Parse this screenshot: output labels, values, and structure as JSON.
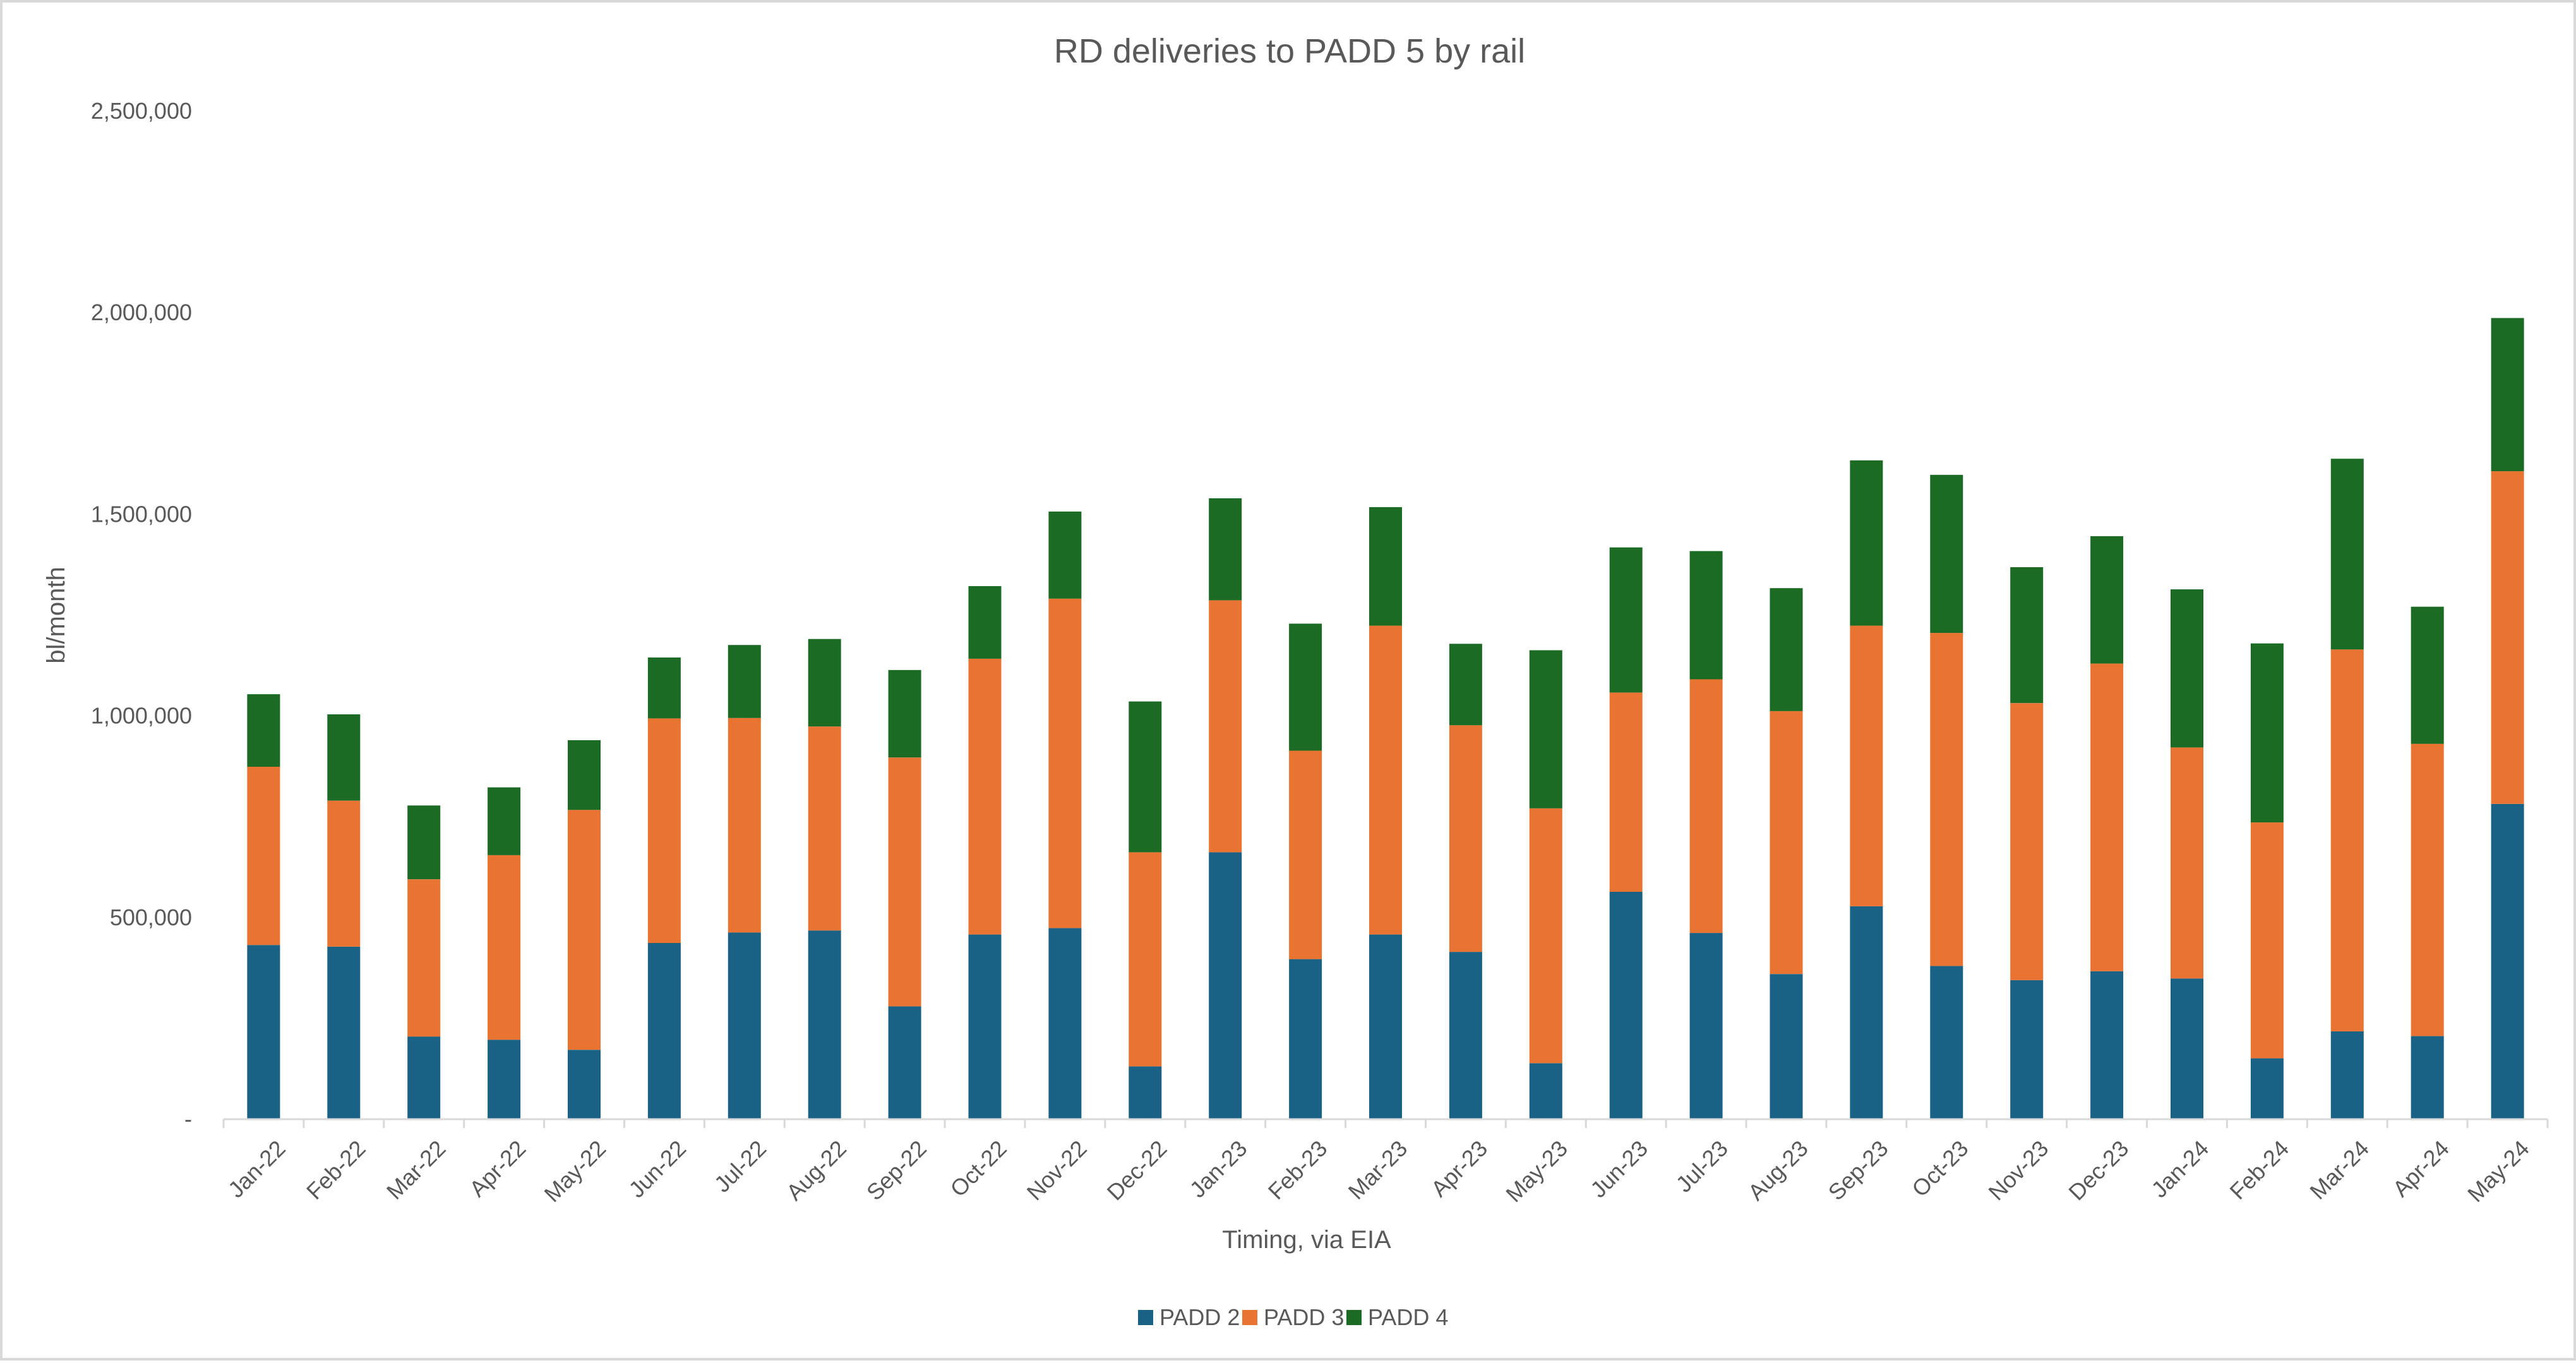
{
  "chart_data": {
    "type": "bar",
    "stacked": true,
    "title": "RD deliveries to PADD 5 by rail",
    "xlabel": "Timing, via EIA",
    "ylabel": "bl/month",
    "ylim": [
      0,
      2500000
    ],
    "yticks": [
      0,
      500000,
      1000000,
      1500000,
      2000000,
      2500000
    ],
    "ytick_labels": [
      "-",
      "500,000",
      "1,000,000",
      "1,500,000",
      "2,000,000",
      "2,500,000"
    ],
    "grid": false,
    "legend_position": "bottom",
    "categories": [
      "Jan-22",
      "Feb-22",
      "Mar-22",
      "Apr-22",
      "May-22",
      "Jun-22",
      "Jul-22",
      "Aug-22",
      "Sep-22",
      "Oct-22",
      "Nov-22",
      "Dec-22",
      "Jan-23",
      "Feb-23",
      "Mar-23",
      "Apr-23",
      "May-23",
      "Jun-23",
      "Jul-23",
      "Aug-23",
      "Sep-23",
      "Oct-23",
      "Nov-23",
      "Dec-23",
      "Jan-24",
      "Feb-24",
      "Mar-24",
      "Apr-24",
      "May-24"
    ],
    "series": [
      {
        "name": "PADD 2",
        "color": "#1a6186",
        "values": [
          432000,
          428000,
          205000,
          197000,
          172000,
          437000,
          463000,
          468000,
          280000,
          458000,
          474000,
          131000,
          662000,
          397000,
          458000,
          415000,
          139000,
          564000,
          462000,
          360000,
          528000,
          380000,
          345000,
          367000,
          349000,
          151000,
          218000,
          206000,
          782000
        ]
      },
      {
        "name": "PADD 3",
        "color": "#e97432",
        "values": [
          442000,
          362000,
          390000,
          458000,
          595000,
          557000,
          532000,
          506000,
          617000,
          684000,
          817000,
          531000,
          625000,
          517000,
          766000,
          562000,
          632000,
          494000,
          629000,
          652000,
          696000,
          826000,
          687000,
          763000,
          573000,
          585000,
          947000,
          725000,
          825000
        ]
      },
      {
        "name": "PADD 4",
        "color": "#1b6b25",
        "values": [
          180000,
          214000,
          183000,
          168000,
          173000,
          151000,
          181000,
          217000,
          217000,
          180000,
          216000,
          374000,
          253000,
          315000,
          294000,
          202000,
          392000,
          360000,
          318000,
          305000,
          410000,
          392000,
          337000,
          316000,
          392000,
          444000,
          473000,
          340000,
          380000
        ]
      }
    ]
  }
}
